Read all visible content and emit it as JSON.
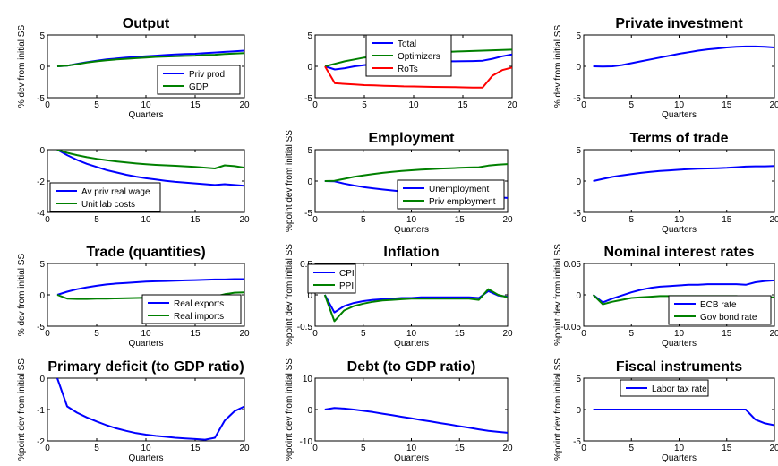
{
  "colors": {
    "blue": "#0000ff",
    "green": "#008000",
    "red": "#ff0000"
  },
  "chart_data": [
    {
      "type": "line",
      "title": "Output",
      "xlabel": "Quarters",
      "ylabel": "% dev from initial SS",
      "xlim": [
        0,
        20
      ],
      "ylim": [
        -5,
        5
      ],
      "xticks": [
        "0",
        "5",
        "10",
        "15",
        "20"
      ],
      "yticks": [
        "-5",
        "0",
        "5"
      ],
      "x": [
        1,
        2,
        3,
        4,
        5,
        6,
        7,
        8,
        9,
        10,
        11,
        12,
        13,
        14,
        15,
        16,
        17,
        18,
        19,
        20
      ],
      "legend": "bottom-right",
      "series": [
        {
          "name": "Priv prod",
          "color": "#0000ff",
          "values": [
            0,
            0.1,
            0.4,
            0.65,
            0.9,
            1.1,
            1.25,
            1.4,
            1.5,
            1.6,
            1.7,
            1.8,
            1.9,
            1.95,
            2.0,
            2.1,
            2.2,
            2.3,
            2.4,
            2.5
          ]
        },
        {
          "name": "GDP",
          "color": "#008000",
          "values": [
            0,
            0.1,
            0.35,
            0.6,
            0.8,
            0.95,
            1.1,
            1.2,
            1.3,
            1.4,
            1.5,
            1.55,
            1.6,
            1.65,
            1.7,
            1.8,
            1.85,
            1.95,
            2.05,
            2.1
          ]
        }
      ]
    },
    {
      "type": "line",
      "title": "",
      "xlabel": "",
      "ylabel": "",
      "xlim": [
        0,
        20
      ],
      "ylim": [
        -5,
        5
      ],
      "xticks": [
        "0",
        "5",
        "10",
        "15",
        "20"
      ],
      "yticks": [
        "-5",
        "0",
        "5"
      ],
      "x": [
        1,
        2,
        3,
        4,
        5,
        6,
        7,
        8,
        9,
        10,
        11,
        12,
        13,
        14,
        15,
        16,
        17,
        18,
        19,
        20
      ],
      "legend": "top",
      "series": [
        {
          "name": "Total",
          "color": "#0000ff",
          "values": [
            0,
            -0.5,
            -0.3,
            0,
            0.2,
            0.35,
            0.5,
            0.6,
            0.65,
            0.7,
            0.72,
            0.75,
            0.78,
            0.8,
            0.82,
            0.85,
            0.9,
            1.2,
            1.6,
            1.9
          ]
        },
        {
          "name": "Optimizers",
          "color": "#008000",
          "values": [
            0,
            0.4,
            0.8,
            1.1,
            1.4,
            1.6,
            1.8,
            1.95,
            2.05,
            2.15,
            2.2,
            2.25,
            2.3,
            2.35,
            2.4,
            2.45,
            2.5,
            2.55,
            2.6,
            2.65
          ]
        },
        {
          "name": "RoTs",
          "color": "#ff0000",
          "values": [
            0,
            -2.7,
            -2.8,
            -2.9,
            -3.0,
            -3.05,
            -3.1,
            -3.15,
            -3.2,
            -3.22,
            -3.25,
            -3.28,
            -3.3,
            -3.32,
            -3.35,
            -3.38,
            -3.4,
            -1.5,
            -0.6,
            -0.2
          ]
        }
      ]
    },
    {
      "type": "line",
      "title": "Private investment",
      "xlabel": "Quarters",
      "ylabel": "% dev from initial SS",
      "xlim": [
        0,
        20
      ],
      "ylim": [
        -5,
        5
      ],
      "xticks": [
        "0",
        "5",
        "10",
        "15",
        "20"
      ],
      "yticks": [
        "-5",
        "0",
        "5"
      ],
      "x": [
        1,
        2,
        3,
        4,
        5,
        6,
        7,
        8,
        9,
        10,
        11,
        12,
        13,
        14,
        15,
        16,
        17,
        18,
        19,
        20
      ],
      "legend": "none",
      "series": [
        {
          "name": "",
          "color": "#0000ff",
          "values": [
            0,
            -0.05,
            0,
            0.2,
            0.5,
            0.8,
            1.1,
            1.4,
            1.7,
            2.0,
            2.25,
            2.5,
            2.7,
            2.85,
            3.0,
            3.1,
            3.15,
            3.15,
            3.1,
            3.0
          ]
        }
      ]
    },
    {
      "type": "line",
      "title": "",
      "xlabel": "",
      "ylabel": "",
      "xlim": [
        0,
        20
      ],
      "ylim": [
        -4,
        0
      ],
      "xticks": [
        "0",
        "5",
        "10",
        "15",
        "20"
      ],
      "yticks": [
        "-4",
        "-2",
        "0"
      ],
      "x": [
        1,
        2,
        3,
        4,
        5,
        6,
        7,
        8,
        9,
        10,
        11,
        12,
        13,
        14,
        15,
        16,
        17,
        18,
        19,
        20
      ],
      "legend": "bottom-left",
      "series": [
        {
          "name": "Av priv real wage",
          "color": "#0000ff",
          "values": [
            0,
            -0.35,
            -0.65,
            -0.9,
            -1.1,
            -1.3,
            -1.45,
            -1.6,
            -1.72,
            -1.82,
            -1.9,
            -1.98,
            -2.05,
            -2.1,
            -2.15,
            -2.2,
            -2.25,
            -2.2,
            -2.25,
            -2.3
          ]
        },
        {
          "name": "Unit lab costs",
          "color": "#008000",
          "values": [
            0,
            -0.2,
            -0.35,
            -0.48,
            -0.58,
            -0.67,
            -0.75,
            -0.82,
            -0.88,
            -0.93,
            -0.97,
            -1.0,
            -1.03,
            -1.06,
            -1.1,
            -1.15,
            -1.2,
            -1.0,
            -1.05,
            -1.15
          ]
        }
      ]
    },
    {
      "type": "line",
      "title": "Employment",
      "xlabel": "Quarters",
      "ylabel": "%point dev from initial SS",
      "xlim": [
        0,
        20
      ],
      "ylim": [
        -5,
        5
      ],
      "xticks": [
        "0",
        "5",
        "10",
        "15",
        "20"
      ],
      "yticks": [
        "-5",
        "0",
        "5"
      ],
      "x": [
        1,
        2,
        3,
        4,
        5,
        6,
        7,
        8,
        9,
        10,
        11,
        12,
        13,
        14,
        15,
        16,
        17,
        18,
        19,
        20
      ],
      "legend": "bottom-right",
      "series": [
        {
          "name": "Unemployment",
          "color": "#0000ff",
          "values": [
            0,
            -0.05,
            -0.4,
            -0.7,
            -0.95,
            -1.15,
            -1.35,
            -1.5,
            -1.65,
            -1.75,
            -1.85,
            -1.95,
            -2.0,
            -2.05,
            -2.1,
            -2.15,
            -2.2,
            -2.4,
            -2.6,
            -2.7
          ]
        },
        {
          "name": "Priv employment",
          "color": "#008000",
          "values": [
            0,
            0.05,
            0.35,
            0.65,
            0.9,
            1.1,
            1.3,
            1.45,
            1.6,
            1.72,
            1.82,
            1.9,
            1.98,
            2.05,
            2.1,
            2.15,
            2.2,
            2.45,
            2.6,
            2.7
          ]
        }
      ]
    },
    {
      "type": "line",
      "title": "Terms of trade",
      "xlabel": "Quarters",
      "ylabel": "",
      "xlim": [
        0,
        20
      ],
      "ylim": [
        -5,
        5
      ],
      "xticks": [
        "0",
        "5",
        "10",
        "15",
        "20"
      ],
      "yticks": [
        "-5",
        "0",
        "5"
      ],
      "x": [
        1,
        2,
        3,
        4,
        5,
        6,
        7,
        8,
        9,
        10,
        11,
        12,
        13,
        14,
        15,
        16,
        17,
        18,
        19,
        20
      ],
      "legend": "none",
      "series": [
        {
          "name": "",
          "color": "#0000ff",
          "values": [
            0,
            0.35,
            0.65,
            0.9,
            1.1,
            1.3,
            1.45,
            1.6,
            1.7,
            1.8,
            1.9,
            1.95,
            2.0,
            2.05,
            2.1,
            2.2,
            2.3,
            2.35,
            2.35,
            2.4
          ]
        }
      ]
    },
    {
      "type": "line",
      "title": "Trade (quantities)",
      "xlabel": "Quarters",
      "ylabel": "% dev from initial SS",
      "xlim": [
        0,
        20
      ],
      "ylim": [
        -5,
        5
      ],
      "xticks": [
        "0",
        "5",
        "10",
        "15",
        "20"
      ],
      "yticks": [
        "-5",
        "0",
        "5"
      ],
      "x": [
        1,
        2,
        3,
        4,
        5,
        6,
        7,
        8,
        9,
        10,
        11,
        12,
        13,
        14,
        15,
        16,
        17,
        18,
        19,
        20
      ],
      "legend": "bottom-right",
      "series": [
        {
          "name": "Real exports",
          "color": "#0000ff",
          "values": [
            0,
            0.5,
            0.9,
            1.2,
            1.45,
            1.65,
            1.8,
            1.9,
            2.0,
            2.1,
            2.15,
            2.2,
            2.25,
            2.3,
            2.35,
            2.4,
            2.45,
            2.45,
            2.5,
            2.5
          ]
        },
        {
          "name": "Real imports",
          "color": "#008000",
          "values": [
            0,
            -0.6,
            -0.65,
            -0.65,
            -0.62,
            -0.6,
            -0.57,
            -0.54,
            -0.5,
            -0.47,
            -0.44,
            -0.4,
            -0.37,
            -0.34,
            -0.3,
            -0.27,
            -0.25,
            0.1,
            0.35,
            0.4
          ]
        }
      ]
    },
    {
      "type": "line",
      "title": "Inflation",
      "xlabel": "Quarters",
      "ylabel": "%point dev from initial SS",
      "xlim": [
        0,
        20
      ],
      "ylim": [
        -0.5,
        0.5
      ],
      "xticks": [
        "0",
        "5",
        "10",
        "15",
        "20"
      ],
      "yticks": [
        "-0.5",
        "0",
        "0.5"
      ],
      "x": [
        1,
        2,
        3,
        4,
        5,
        6,
        7,
        8,
        9,
        10,
        11,
        12,
        13,
        14,
        15,
        16,
        17,
        18,
        19,
        20
      ],
      "legend": "top-left",
      "series": [
        {
          "name": "CPI",
          "color": "#0000ff",
          "values": [
            0,
            -0.28,
            -0.18,
            -0.13,
            -0.1,
            -0.08,
            -0.07,
            -0.06,
            -0.05,
            -0.05,
            -0.04,
            -0.04,
            -0.04,
            -0.04,
            -0.04,
            -0.04,
            -0.05,
            0.06,
            -0.01,
            -0.03
          ]
        },
        {
          "name": "PPI",
          "color": "#008000",
          "values": [
            0,
            -0.42,
            -0.25,
            -0.18,
            -0.14,
            -0.11,
            -0.09,
            -0.08,
            -0.07,
            -0.06,
            -0.06,
            -0.06,
            -0.06,
            -0.06,
            -0.06,
            -0.06,
            -0.08,
            0.09,
            0.0,
            -0.04
          ]
        }
      ]
    },
    {
      "type": "line",
      "title": "Nominal interest rates",
      "xlabel": "Quarters",
      "ylabel": "%point dev from initial SS",
      "xlim": [
        0,
        20
      ],
      "ylim": [
        -0.05,
        0.05
      ],
      "xticks": [
        "0",
        "5",
        "10",
        "15",
        "20"
      ],
      "yticks": [
        "-0.05",
        "0",
        "0.05"
      ],
      "x": [
        1,
        2,
        3,
        4,
        5,
        6,
        7,
        8,
        9,
        10,
        11,
        12,
        13,
        14,
        15,
        16,
        17,
        18,
        19,
        20
      ],
      "legend": "bottom-right",
      "series": [
        {
          "name": "ECB rate",
          "color": "#0000ff",
          "values": [
            0,
            -0.012,
            -0.006,
            -0.001,
            0.004,
            0.008,
            0.011,
            0.013,
            0.014,
            0.015,
            0.016,
            0.016,
            0.017,
            0.017,
            0.017,
            0.017,
            0.016,
            0.02,
            0.022,
            0.023
          ]
        },
        {
          "name": "Gov bond rate",
          "color": "#008000",
          "values": [
            0,
            -0.015,
            -0.011,
            -0.008,
            -0.005,
            -0.004,
            -0.003,
            -0.002,
            -0.002,
            -0.002,
            -0.002,
            -0.002,
            -0.002,
            -0.002,
            -0.002,
            -0.002,
            -0.003,
            -0.004,
            -0.004,
            -0.004
          ]
        }
      ]
    },
    {
      "type": "line",
      "title": "Primary deficit (to GDP ratio)",
      "xlabel": "Quarters",
      "ylabel": "%point dev from initial SS",
      "xlim": [
        0,
        20
      ],
      "ylim": [
        -2,
        0
      ],
      "xticks": [
        "0",
        "5",
        "10",
        "15",
        "20"
      ],
      "yticks": [
        "-2",
        "-1",
        "0"
      ],
      "x": [
        1,
        2,
        3,
        4,
        5,
        6,
        7,
        8,
        9,
        10,
        11,
        12,
        13,
        14,
        15,
        16,
        17,
        18,
        19,
        20
      ],
      "legend": "none",
      "series": [
        {
          "name": "",
          "color": "#0000ff",
          "values": [
            0,
            -0.9,
            -1.1,
            -1.25,
            -1.38,
            -1.5,
            -1.6,
            -1.68,
            -1.75,
            -1.8,
            -1.84,
            -1.87,
            -1.9,
            -1.92,
            -1.94,
            -1.96,
            -1.9,
            -1.35,
            -1.05,
            -0.9
          ]
        }
      ]
    },
    {
      "type": "line",
      "title": "Debt (to GDP ratio)",
      "xlabel": "Quarters",
      "ylabel": "%point dev from initial SS",
      "xlim": [
        0,
        20
      ],
      "ylim": [
        -10,
        10
      ],
      "xticks": [
        "0",
        "5",
        "10",
        "15",
        "20"
      ],
      "yticks": [
        "-10",
        "0",
        "10"
      ],
      "x": [
        1,
        2,
        3,
        4,
        5,
        6,
        7,
        8,
        9,
        10,
        11,
        12,
        13,
        14,
        15,
        16,
        17,
        18,
        19,
        20
      ],
      "legend": "none",
      "series": [
        {
          "name": "",
          "color": "#0000ff",
          "values": [
            0,
            0.5,
            0.3,
            0,
            -0.4,
            -0.8,
            -1.3,
            -1.8,
            -2.3,
            -2.8,
            -3.3,
            -3.8,
            -4.3,
            -4.8,
            -5.3,
            -5.8,
            -6.3,
            -6.8,
            -7.1,
            -7.4
          ]
        }
      ]
    },
    {
      "type": "line",
      "title": "Fiscal instruments",
      "xlabel": "Quarters",
      "ylabel": "%point dev from initial SS",
      "xlim": [
        0,
        20
      ],
      "ylim": [
        -5,
        5
      ],
      "xticks": [
        "0",
        "5",
        "10",
        "15",
        "20"
      ],
      "yticks": [
        "-5",
        "0",
        "5"
      ],
      "x": [
        1,
        2,
        3,
        4,
        5,
        6,
        7,
        8,
        9,
        10,
        11,
        12,
        13,
        14,
        15,
        16,
        17,
        18,
        19,
        20
      ],
      "legend": "top",
      "series": [
        {
          "name": "Labor tax rate",
          "color": "#0000ff",
          "values": [
            0,
            0,
            0,
            0,
            0,
            0,
            0,
            0,
            0,
            0,
            0,
            0,
            0,
            0,
            0,
            0,
            0,
            -1.6,
            -2.2,
            -2.5
          ]
        }
      ]
    }
  ]
}
